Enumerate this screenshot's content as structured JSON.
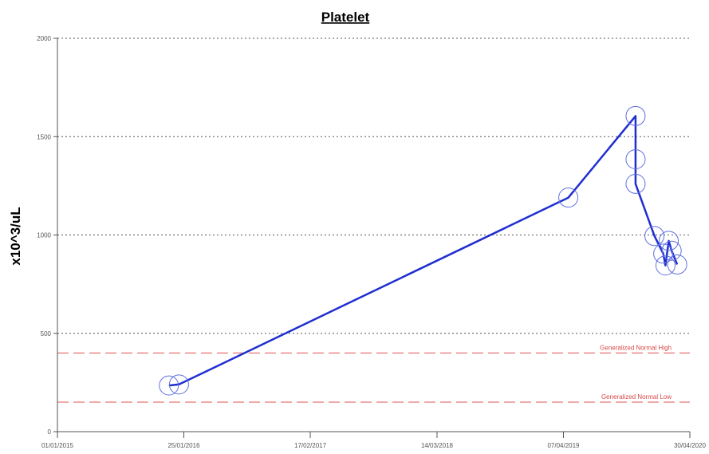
{
  "chart_data": {
    "type": "line",
    "title": "Platelet",
    "xlabel": "",
    "ylabel": "x10^3/uL",
    "ylim": [
      0,
      2000
    ],
    "yticks": [
      0,
      500,
      1000,
      1500,
      2000
    ],
    "xlim": [
      "2015-01-01",
      "2020-04-30"
    ],
    "xticks": [
      {
        "date": "2015-01-01",
        "label": "01/01/2015"
      },
      {
        "date": "2016-01-25",
        "label": "25/01/2016"
      },
      {
        "date": "2017-02-17",
        "label": "17/02/2017"
      },
      {
        "date": "2018-03-14",
        "label": "14/03/2018"
      },
      {
        "date": "2019-04-07",
        "label": "07/04/2019"
      },
      {
        "date": "2020-04-30",
        "label": "30/04/2020"
      }
    ],
    "grid": "horizontal-dotted",
    "series": [
      {
        "color": "#1f2fd0",
        "points": [
          {
            "x": "2015-12-10",
            "y": 235
          },
          {
            "x": "2016-01-10",
            "y": 240
          },
          {
            "x": "2019-04-22",
            "y": 1190
          },
          {
            "x": "2019-11-15",
            "y": 1605
          },
          {
            "x": "2019-11-15",
            "y": 1385
          },
          {
            "x": "2019-11-15",
            "y": 1260
          },
          {
            "x": "2020-01-12",
            "y": 995
          },
          {
            "x": "2020-02-08",
            "y": 905
          },
          {
            "x": "2020-02-15",
            "y": 845
          },
          {
            "x": "2020-02-25",
            "y": 970
          },
          {
            "x": "2020-03-05",
            "y": 920
          },
          {
            "x": "2020-03-22",
            "y": 850
          }
        ]
      }
    ],
    "reference_lines": [
      {
        "label": "Generalized Normal High",
        "y": 400,
        "color": "#e05050"
      },
      {
        "label": "Generalized Normal Low",
        "y": 150,
        "color": "#e05050"
      }
    ]
  }
}
